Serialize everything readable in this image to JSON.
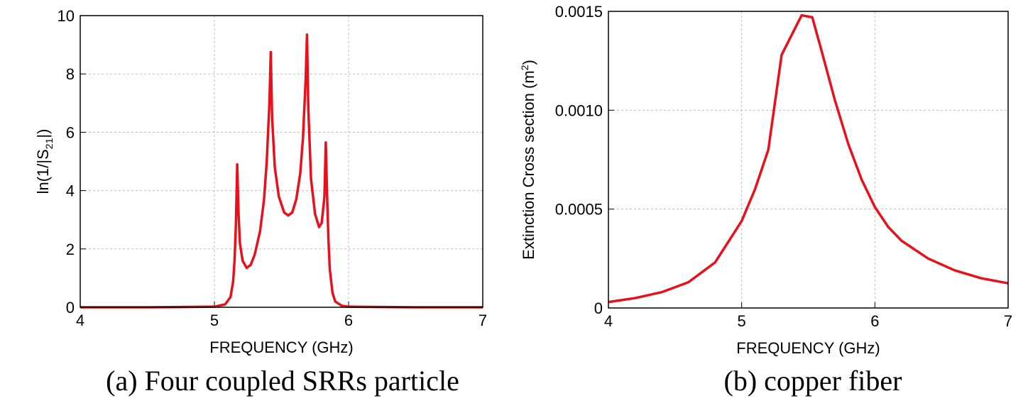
{
  "chart_data": [
    {
      "type": "line",
      "caption": "(a) Four coupled SRRs particle",
      "xlabel": "FREQUENCY (GHz)",
      "ylabel": [
        "ln(1/|S",
        "21",
        "|)"
      ],
      "x": [
        4.0,
        4.5,
        5.0,
        5.08,
        5.12,
        5.14,
        5.15,
        5.16,
        5.17,
        5.18,
        5.19,
        5.21,
        5.24,
        5.27,
        5.3,
        5.34,
        5.37,
        5.39,
        5.41,
        5.42,
        5.43,
        5.45,
        5.48,
        5.52,
        5.55,
        5.58,
        5.61,
        5.64,
        5.66,
        5.68,
        5.69,
        5.7,
        5.72,
        5.75,
        5.78,
        5.8,
        5.82,
        5.83,
        5.84,
        5.85,
        5.86,
        5.88,
        5.9,
        5.95,
        6.0,
        6.5,
        7.0
      ],
      "values": [
        0,
        0,
        0.02,
        0.1,
        0.35,
        0.9,
        1.6,
        2.8,
        4.9,
        3.2,
        2.2,
        1.6,
        1.35,
        1.45,
        1.8,
        2.6,
        3.7,
        5.0,
        7.0,
        8.75,
        6.5,
        4.8,
        3.8,
        3.25,
        3.15,
        3.25,
        3.7,
        4.6,
        5.8,
        7.8,
        9.35,
        6.8,
        4.4,
        3.2,
        2.75,
        2.9,
        3.8,
        5.65,
        3.8,
        2.3,
        1.3,
        0.5,
        0.2,
        0.05,
        0.02,
        0,
        0
      ],
      "color": "#e8101a",
      "xlim": [
        4,
        7
      ],
      "xticks": [
        4,
        5,
        6,
        7
      ],
      "ylim": [
        0,
        10
      ],
      "yticks": [
        0,
        2,
        4,
        6,
        8,
        10
      ],
      "grid": true
    },
    {
      "type": "line",
      "caption": "(b) copper fiber",
      "xlabel": "FREQUENCY (GHz)",
      "ylabel": [
        "Extinction Cross section (m",
        "2",
        ")"
      ],
      "x": [
        4.0,
        4.2,
        4.4,
        4.6,
        4.8,
        5.0,
        5.1,
        5.2,
        5.3,
        5.45,
        5.53,
        5.6,
        5.7,
        5.8,
        5.9,
        6.0,
        6.1,
        6.2,
        6.4,
        6.6,
        6.8,
        7.0
      ],
      "values": [
        3e-05,
        5e-05,
        8e-05,
        0.00013,
        0.00023,
        0.00044,
        0.0006,
        0.0008,
        0.00128,
        0.00148,
        0.00147,
        0.0013,
        0.00105,
        0.00083,
        0.00065,
        0.00051,
        0.00041,
        0.00034,
        0.00025,
        0.00019,
        0.00015,
        0.000125
      ],
      "color": "#e8101a",
      "xlim": [
        4,
        7
      ],
      "xticks": [
        4,
        5,
        6,
        7
      ],
      "ylim": [
        0,
        0.0015
      ],
      "yticks": [
        0,
        0.0005,
        {
          "value": 0.001,
          "label": "0.0010"
        },
        0.0015
      ],
      "grid": true
    }
  ]
}
